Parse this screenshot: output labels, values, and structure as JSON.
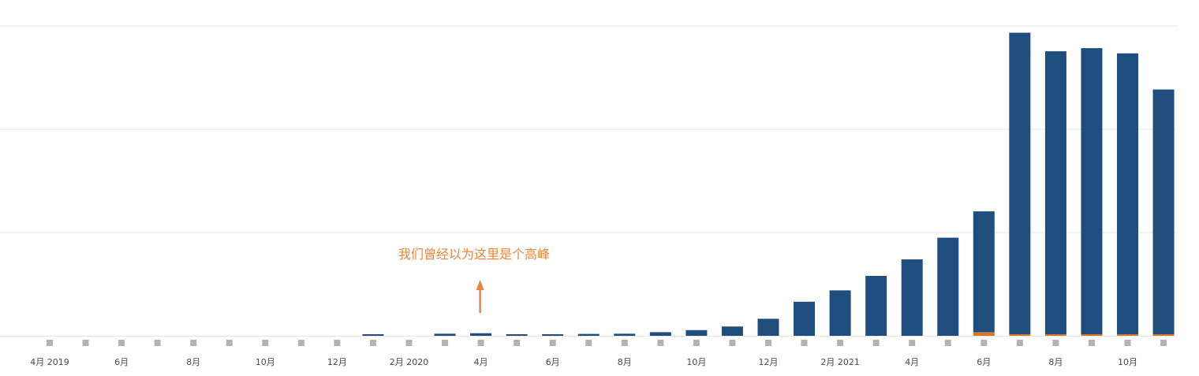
{
  "chart_data": {
    "type": "bar",
    "stacked": true,
    "title": "",
    "xlabel": "",
    "ylabel": "",
    "ylim": [
      0,
      3
    ],
    "grid": true,
    "legend": "none",
    "gridlines": [
      1,
      2,
      3
    ],
    "colors": {
      "primary": "#1f4e7e",
      "secondary": "#d4782a",
      "marker": "#b3b3b3",
      "grid": "#e6e6e6",
      "annotation": "#e8863a"
    },
    "categories": [
      "2019-04",
      "2019-05",
      "2019-06",
      "2019-07",
      "2019-08",
      "2019-09",
      "2019-10",
      "2019-11",
      "2019-12",
      "2020-01",
      "2020-02",
      "2020-03",
      "2020-04",
      "2020-05",
      "2020-06",
      "2020-07",
      "2020-08",
      "2020-09",
      "2020-10",
      "2020-11",
      "2020-12",
      "2021-01",
      "2021-02",
      "2021-03",
      "2021-04",
      "2021-05",
      "2021-06",
      "2021-07",
      "2021-08",
      "2021-09",
      "2021-10",
      "2021-11"
    ],
    "series": [
      {
        "values": [
          0,
          0,
          0,
          0,
          0,
          0,
          0,
          0,
          0,
          0.01,
          0,
          0.02,
          0.025,
          0.01,
          0.012,
          0.018,
          0.02,
          0.035,
          0.055,
          0.09,
          0.165,
          0.33,
          0.44,
          0.58,
          0.74,
          0.95,
          1.17,
          2.92,
          2.74,
          2.77,
          2.72,
          2.37
        ]
      },
      {
        "values": [
          0,
          0,
          0,
          0,
          0,
          0,
          0,
          0,
          0,
          0,
          0,
          0,
          0,
          0,
          0,
          0,
          0,
          0,
          0,
          0,
          0,
          0,
          0,
          0,
          0,
          0,
          0.035,
          0.015,
          0.015,
          0.015,
          0.015,
          0.01
        ]
      }
    ],
    "x_tick_labels": [
      {
        "index": 0,
        "label": "4月 2019"
      },
      {
        "index": 2,
        "label": "6月"
      },
      {
        "index": 4,
        "label": "8月"
      },
      {
        "index": 6,
        "label": "10月"
      },
      {
        "index": 8,
        "label": "12月"
      },
      {
        "index": 10,
        "label": "2月 2020"
      },
      {
        "index": 12,
        "label": "4月"
      },
      {
        "index": 14,
        "label": "6月"
      },
      {
        "index": 16,
        "label": "8月"
      },
      {
        "index": 18,
        "label": "10月"
      },
      {
        "index": 20,
        "label": "12月"
      },
      {
        "index": 22,
        "label": "2月 2021"
      },
      {
        "index": 24,
        "label": "4月"
      },
      {
        "index": 26,
        "label": "6月"
      },
      {
        "index": 28,
        "label": "8月"
      },
      {
        "index": 30,
        "label": "10月"
      }
    ],
    "annotations": [
      {
        "text": "我们曾经以为这里是个高峰",
        "target_index": 12
      }
    ]
  }
}
